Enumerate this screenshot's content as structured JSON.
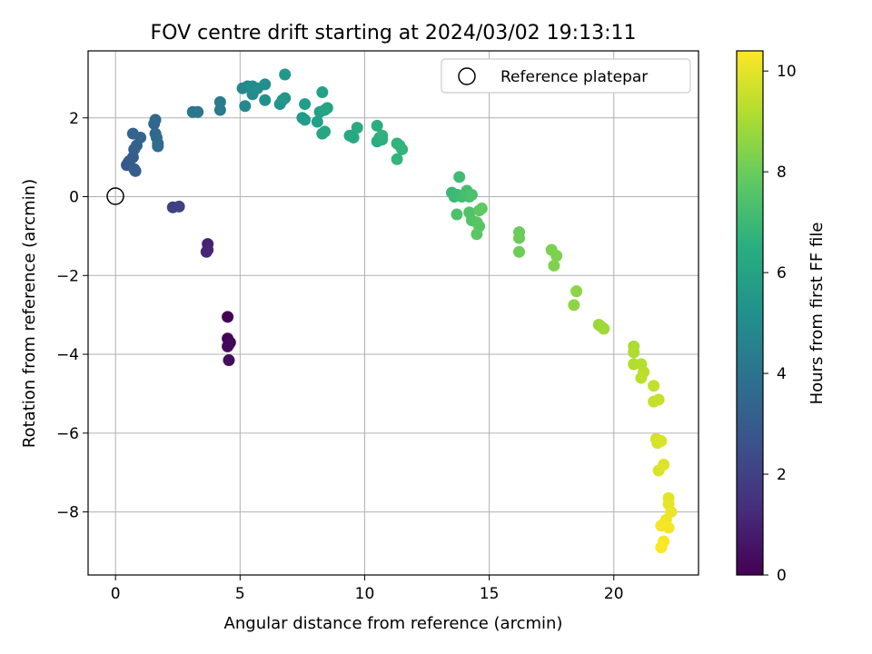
{
  "chart_data": {
    "type": "scatter",
    "title": "FOV centre drift starting at 2024/03/02 19:13:11",
    "xlabel": "Angular distance from reference (arcmin)",
    "ylabel": "Rotation from reference (arcmin)",
    "xlim": [
      -1.1,
      23.4
    ],
    "ylim": [
      -9.6,
      3.7
    ],
    "x_ticks": [
      0,
      5,
      10,
      15,
      20
    ],
    "y_ticks": [
      2,
      0,
      -2,
      -4,
      -6,
      -8
    ],
    "grid": true,
    "legend": {
      "placement": "top-right",
      "entries": [
        "Reference platepar"
      ]
    },
    "colorbar": {
      "label": "Hours from first FF file",
      "range": [
        0,
        10.4
      ],
      "ticks": [
        0,
        2,
        4,
        6,
        8,
        10
      ],
      "colormap": "viridis"
    },
    "reference_point": {
      "x": 0,
      "y": 0
    },
    "points": [
      [
        4.5,
        -3.05,
        0.0
      ],
      [
        4.5,
        -3.6,
        0.1
      ],
      [
        4.6,
        -3.7,
        0.15
      ],
      [
        4.55,
        -3.75,
        0.2
      ],
      [
        4.5,
        -3.8,
        0.25
      ],
      [
        4.55,
        -4.15,
        0.3
      ],
      [
        3.7,
        -1.2,
        1.0
      ],
      [
        3.7,
        -1.35,
        1.05
      ],
      [
        3.65,
        -1.4,
        1.1
      ],
      [
        2.3,
        -0.27,
        1.9
      ],
      [
        2.55,
        -0.25,
        2.0
      ],
      [
        0.45,
        0.8,
        2.8
      ],
      [
        0.5,
        0.85,
        2.85
      ],
      [
        0.55,
        0.9,
        2.9
      ],
      [
        0.7,
        1.0,
        3.0
      ],
      [
        0.75,
        0.7,
        3.05
      ],
      [
        0.8,
        0.65,
        3.1
      ],
      [
        0.75,
        1.2,
        3.15
      ],
      [
        0.85,
        1.3,
        3.2
      ],
      [
        0.7,
        1.6,
        3.3
      ],
      [
        1.0,
        1.5,
        3.35
      ],
      [
        1.55,
        1.85,
        3.4
      ],
      [
        1.6,
        1.95,
        3.45
      ],
      [
        1.6,
        1.6,
        3.5
      ],
      [
        1.65,
        1.5,
        3.55
      ],
      [
        1.7,
        1.35,
        3.6
      ],
      [
        1.7,
        1.28,
        3.65
      ],
      [
        3.1,
        2.15,
        4.1
      ],
      [
        3.3,
        2.15,
        4.15
      ],
      [
        4.2,
        2.2,
        4.3
      ],
      [
        4.2,
        2.4,
        4.35
      ],
      [
        5.1,
        2.75,
        4.8
      ],
      [
        5.3,
        2.8,
        4.85
      ],
      [
        5.2,
        2.3,
        4.9
      ],
      [
        5.5,
        2.6,
        5.0
      ],
      [
        5.5,
        2.8,
        5.05
      ],
      [
        5.7,
        2.75,
        5.1
      ],
      [
        6.0,
        2.85,
        5.15
      ],
      [
        6.0,
        2.45,
        5.2
      ],
      [
        6.6,
        2.35,
        5.4
      ],
      [
        6.7,
        2.45,
        5.45
      ],
      [
        6.8,
        2.5,
        5.5
      ],
      [
        6.8,
        3.1,
        5.55
      ],
      [
        7.5,
        2.0,
        5.7
      ],
      [
        7.6,
        1.95,
        5.75
      ],
      [
        7.6,
        2.35,
        5.8
      ],
      [
        8.1,
        1.9,
        5.85
      ],
      [
        8.2,
        2.15,
        5.9
      ],
      [
        8.3,
        2.65,
        5.95
      ],
      [
        8.4,
        2.2,
        6.0
      ],
      [
        8.5,
        2.25,
        6.05
      ],
      [
        8.3,
        1.6,
        6.1
      ],
      [
        8.4,
        1.65,
        6.15
      ],
      [
        9.4,
        1.55,
        6.25
      ],
      [
        9.55,
        1.5,
        6.3
      ],
      [
        9.7,
        1.75,
        6.35
      ],
      [
        10.5,
        1.4,
        6.4
      ],
      [
        10.5,
        1.8,
        6.45
      ],
      [
        10.6,
        1.5,
        6.5
      ],
      [
        10.7,
        1.45,
        6.55
      ],
      [
        10.7,
        1.55,
        6.6
      ],
      [
        11.3,
        1.35,
        6.7
      ],
      [
        11.4,
        1.3,
        6.75
      ],
      [
        11.5,
        1.2,
        6.8
      ],
      [
        11.3,
        0.95,
        6.85
      ],
      [
        13.5,
        0.1,
        7.0
      ],
      [
        13.6,
        0.0,
        7.05
      ],
      [
        13.7,
        0.05,
        7.1
      ],
      [
        13.8,
        0.5,
        7.15
      ],
      [
        13.9,
        0.0,
        7.2
      ],
      [
        14.0,
        0.05,
        7.25
      ],
      [
        14.1,
        0.15,
        7.3
      ],
      [
        14.2,
        0.0,
        7.35
      ],
      [
        14.3,
        0.05,
        7.4
      ],
      [
        13.7,
        -0.45,
        7.45
      ],
      [
        14.2,
        -0.4,
        7.5
      ],
      [
        14.3,
        -0.6,
        7.55
      ],
      [
        14.5,
        -0.65,
        7.6
      ],
      [
        14.6,
        -0.75,
        7.65
      ],
      [
        14.5,
        -0.95,
        7.7
      ],
      [
        14.6,
        -0.35,
        7.75
      ],
      [
        14.7,
        -0.3,
        7.8
      ],
      [
        16.2,
        -0.9,
        8.0
      ],
      [
        16.2,
        -1.05,
        8.05
      ],
      [
        16.2,
        -1.4,
        8.1
      ],
      [
        17.5,
        -1.35,
        8.3
      ],
      [
        17.7,
        -1.5,
        8.35
      ],
      [
        17.6,
        -1.75,
        8.4
      ],
      [
        18.5,
        -2.4,
        8.6
      ],
      [
        18.4,
        -2.75,
        8.65
      ],
      [
        19.4,
        -3.25,
        8.8
      ],
      [
        19.5,
        -3.3,
        8.85
      ],
      [
        19.6,
        -3.35,
        8.9
      ],
      [
        20.8,
        -3.8,
        9.1
      ],
      [
        20.8,
        -3.95,
        9.15
      ],
      [
        20.8,
        -4.25,
        9.2
      ],
      [
        21.1,
        -4.25,
        9.25
      ],
      [
        21.2,
        -4.45,
        9.3
      ],
      [
        21.1,
        -4.6,
        9.35
      ],
      [
        21.6,
        -4.8,
        9.45
      ],
      [
        21.6,
        -5.2,
        9.5
      ],
      [
        21.8,
        -5.15,
        9.55
      ],
      [
        21.7,
        -6.15,
        9.7
      ],
      [
        21.75,
        -6.25,
        9.75
      ],
      [
        21.9,
        -6.2,
        9.8
      ],
      [
        21.8,
        -6.95,
        9.85
      ],
      [
        22.0,
        -6.8,
        9.9
      ],
      [
        22.2,
        -7.65,
        10.0
      ],
      [
        22.2,
        -7.8,
        10.05
      ],
      [
        22.3,
        -8.0,
        10.1
      ],
      [
        22.1,
        -8.2,
        10.15
      ],
      [
        22.0,
        -8.3,
        10.2
      ],
      [
        22.2,
        -8.4,
        10.25
      ],
      [
        21.9,
        -8.35,
        10.28
      ],
      [
        22.0,
        -8.75,
        10.32
      ],
      [
        21.9,
        -8.9,
        10.36
      ]
    ]
  }
}
